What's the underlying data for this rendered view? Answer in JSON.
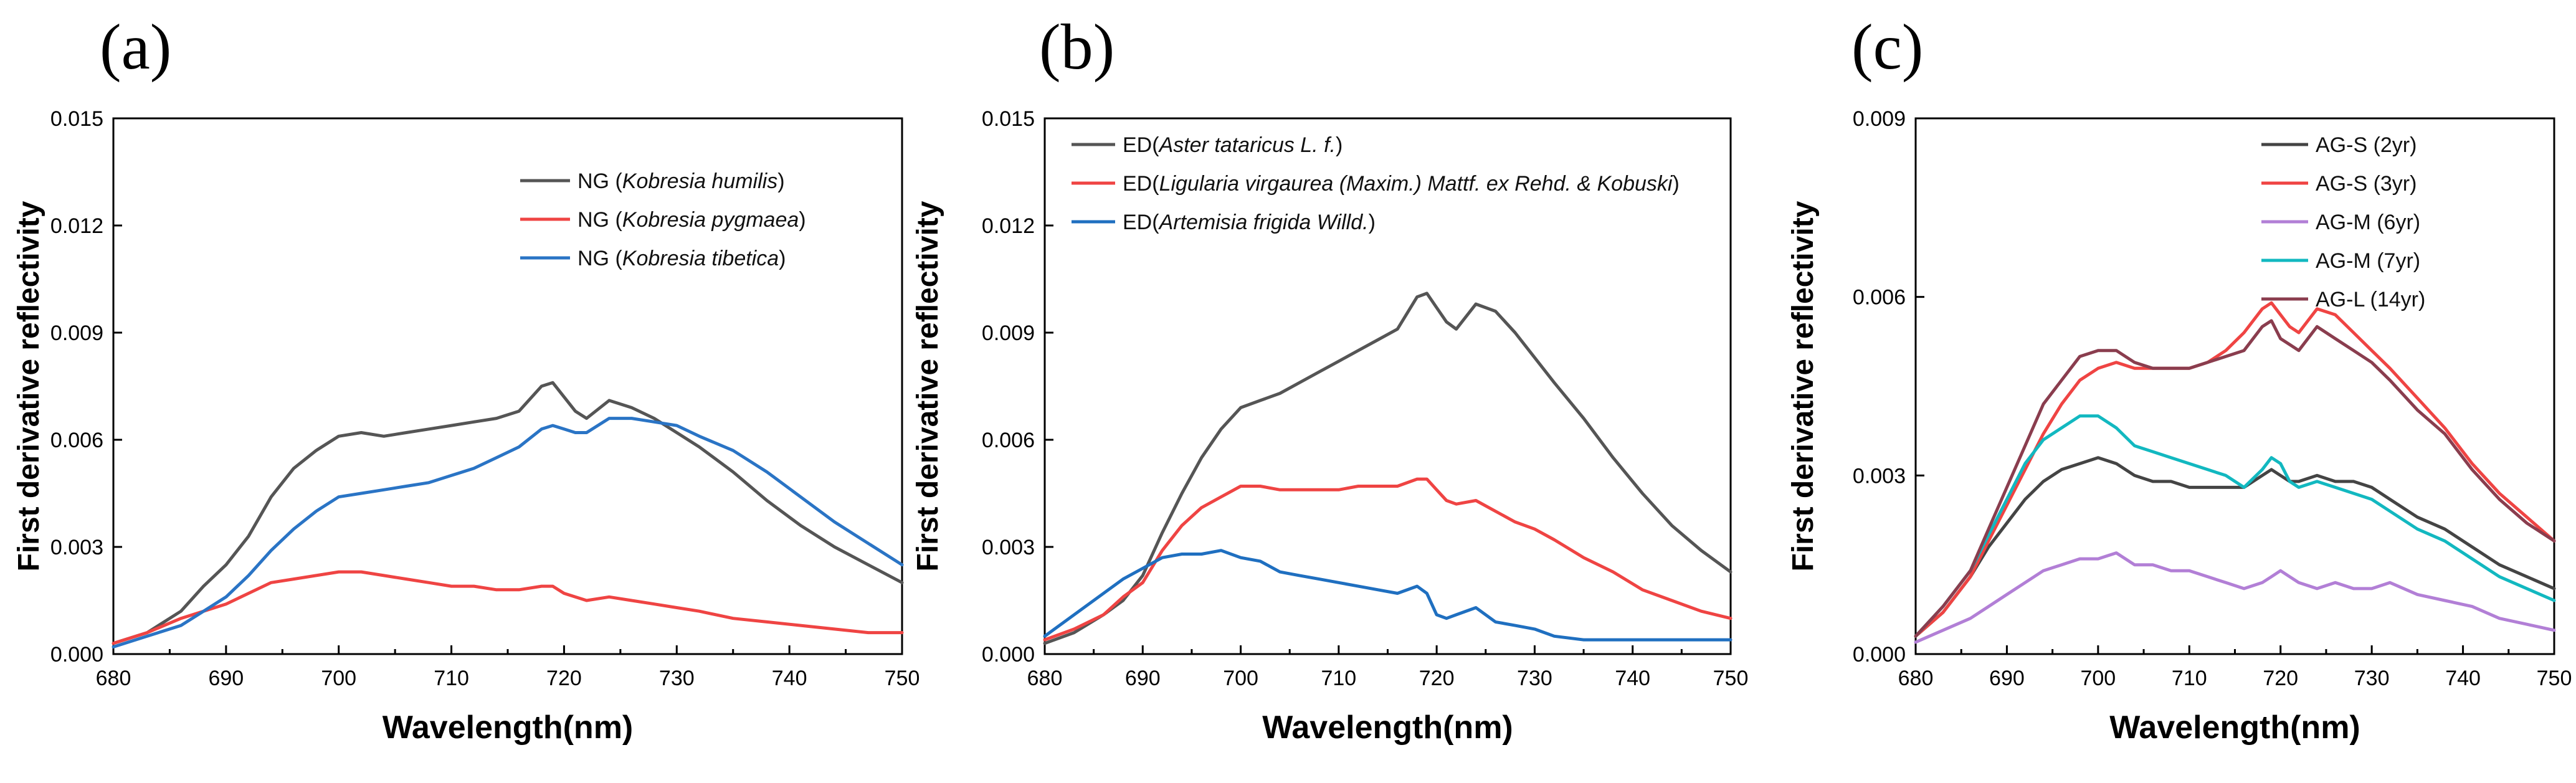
{
  "chart_data": [
    {
      "type": "line",
      "panel_label": "(a)",
      "xlabel": "Wavelength(nm)",
      "ylabel": "First derivative reflectivity",
      "xlim": [
        680,
        750
      ],
      "ylim": [
        0,
        0.015
      ],
      "xticks": [
        "680",
        "690",
        "700",
        "710",
        "720",
        "730",
        "740",
        "750"
      ],
      "yticks": [
        "0.000",
        "0.003",
        "0.006",
        "0.009",
        "0.012",
        "0.015"
      ],
      "legend_position": "top-right",
      "x": [
        680,
        683,
        686,
        688,
        690,
        692,
        694,
        696,
        698,
        700,
        702,
        704,
        706,
        708,
        710,
        712,
        714,
        716,
        718,
        719,
        720,
        721,
        722,
        724,
        726,
        728,
        730,
        732,
        735,
        738,
        741,
        744,
        747,
        750
      ],
      "series": [
        {
          "name_prefix": "NG (",
          "name_italic": "Kobresia humilis",
          "name_suffix": ")",
          "color": "#555555",
          "values": [
            0.0003,
            0.0006,
            0.0012,
            0.0019,
            0.0025,
            0.0033,
            0.0044,
            0.0052,
            0.0057,
            0.0061,
            0.0062,
            0.0061,
            0.0062,
            0.0063,
            0.0064,
            0.0065,
            0.0066,
            0.0068,
            0.0075,
            0.0076,
            0.0072,
            0.0068,
            0.0066,
            0.0071,
            0.0069,
            0.0066,
            0.0062,
            0.0058,
            0.0051,
            0.0043,
            0.0036,
            0.003,
            0.0025,
            0.002
          ]
        },
        {
          "name_prefix": "NG (",
          "name_italic": "Kobresia pygmaea",
          "name_suffix": ")",
          "color": "#ef4443",
          "values": [
            0.0003,
            0.0006,
            0.001,
            0.0012,
            0.0014,
            0.0017,
            0.002,
            0.0021,
            0.0022,
            0.0023,
            0.0023,
            0.0022,
            0.0021,
            0.002,
            0.0019,
            0.0019,
            0.0018,
            0.0018,
            0.0019,
            0.0019,
            0.0017,
            0.0016,
            0.0015,
            0.0016,
            0.0015,
            0.0014,
            0.0013,
            0.0012,
            0.001,
            0.0009,
            0.0008,
            0.0007,
            0.0006,
            0.0006
          ]
        },
        {
          "name_prefix": "NG (",
          "name_italic": "Kobresia tibetica",
          "name_suffix": ")",
          "color": "#2a74c5",
          "values": [
            0.0002,
            0.0005,
            0.0008,
            0.0012,
            0.0016,
            0.0022,
            0.0029,
            0.0035,
            0.004,
            0.0044,
            0.0045,
            0.0046,
            0.0047,
            0.0048,
            0.005,
            0.0052,
            0.0055,
            0.0058,
            0.0063,
            0.0064,
            0.0063,
            0.0062,
            0.0062,
            0.0066,
            0.0066,
            0.0065,
            0.0064,
            0.0061,
            0.0057,
            0.0051,
            0.0044,
            0.0037,
            0.0031,
            0.0025
          ]
        }
      ]
    },
    {
      "type": "line",
      "panel_label": "(b)",
      "xlabel": "Wavelength(nm)",
      "ylabel": "First derivative reflectivity",
      "xlim": [
        680,
        750
      ],
      "ylim": [
        0,
        0.015
      ],
      "xticks": [
        "680",
        "690",
        "700",
        "710",
        "720",
        "730",
        "740",
        "750"
      ],
      "yticks": [
        "0.000",
        "0.003",
        "0.006",
        "0.009",
        "0.012",
        "0.015"
      ],
      "legend_position": "top-left",
      "x": [
        680,
        683,
        686,
        688,
        690,
        692,
        694,
        696,
        698,
        700,
        702,
        704,
        706,
        708,
        710,
        712,
        714,
        716,
        718,
        719,
        720,
        721,
        722,
        724,
        726,
        728,
        730,
        732,
        735,
        738,
        741,
        744,
        747,
        750
      ],
      "series": [
        {
          "name_prefix": "ED(",
          "name_italic": "Aster tataricus L. f.",
          "name_suffix": ")",
          "color": "#555555",
          "values": [
            0.0003,
            0.0006,
            0.0011,
            0.0015,
            0.0022,
            0.0034,
            0.0045,
            0.0055,
            0.0063,
            0.0069,
            0.0071,
            0.0073,
            0.0076,
            0.0079,
            0.0082,
            0.0085,
            0.0088,
            0.0091,
            0.01,
            0.0101,
            0.0097,
            0.0093,
            0.0091,
            0.0098,
            0.0096,
            0.009,
            0.0083,
            0.0076,
            0.0066,
            0.0055,
            0.0045,
            0.0036,
            0.0029,
            0.0023
          ]
        },
        {
          "name_prefix": "ED(",
          "name_italic": "Ligularia virgaurea (Maxim.) Mattf. ex Rehd. & Kobuski",
          "name_suffix": ")",
          "color": "#ef4443",
          "values": [
            0.0004,
            0.0007,
            0.0011,
            0.0016,
            0.002,
            0.0029,
            0.0036,
            0.0041,
            0.0044,
            0.0047,
            0.0047,
            0.0046,
            0.0046,
            0.0046,
            0.0046,
            0.0047,
            0.0047,
            0.0047,
            0.0049,
            0.0049,
            0.0046,
            0.0043,
            0.0042,
            0.0043,
            0.004,
            0.0037,
            0.0035,
            0.0032,
            0.0027,
            0.0023,
            0.0018,
            0.0015,
            0.0012,
            0.001
          ]
        },
        {
          "name_prefix": "ED(",
          "name_italic": "Artemisia frigida Willd.",
          "name_suffix": ")",
          "color": "#1f6fc0",
          "values": [
            0.0005,
            0.0011,
            0.0017,
            0.0021,
            0.0024,
            0.0027,
            0.0028,
            0.0028,
            0.0029,
            0.0027,
            0.0026,
            0.0023,
            0.0022,
            0.0021,
            0.002,
            0.0019,
            0.0018,
            0.0017,
            0.0019,
            0.0017,
            0.0011,
            0.001,
            0.0011,
            0.0013,
            0.0009,
            0.0008,
            0.0007,
            0.0005,
            0.0004,
            0.0004,
            0.0004,
            0.0004,
            0.0004,
            0.0004
          ]
        }
      ]
    },
    {
      "type": "line",
      "panel_label": "(c)",
      "xlabel": "Wavelength(nm)",
      "ylabel": "First derivative reflectivity",
      "xlim": [
        680,
        750
      ],
      "ylim": [
        0,
        0.009
      ],
      "xticks": [
        "680",
        "690",
        "700",
        "710",
        "720",
        "730",
        "740",
        "750"
      ],
      "yticks": [
        "0.000",
        "0.003",
        "0.006",
        "0.009"
      ],
      "legend_position": "top-right",
      "x": [
        680,
        683,
        686,
        688,
        690,
        692,
        694,
        696,
        698,
        700,
        702,
        704,
        706,
        708,
        710,
        712,
        714,
        716,
        718,
        719,
        720,
        721,
        722,
        724,
        726,
        728,
        730,
        732,
        735,
        738,
        741,
        744,
        747,
        750
      ],
      "series": [
        {
          "name": "AG-S (2yr)",
          "color": "#444444",
          "values": [
            0.0003,
            0.0007,
            0.0013,
            0.0018,
            0.0022,
            0.0026,
            0.0029,
            0.0031,
            0.0032,
            0.0033,
            0.0032,
            0.003,
            0.0029,
            0.0029,
            0.0028,
            0.0028,
            0.0028,
            0.0028,
            0.003,
            0.0031,
            0.003,
            0.0029,
            0.0029,
            0.003,
            0.0029,
            0.0029,
            0.0028,
            0.0026,
            0.0023,
            0.0021,
            0.0018,
            0.0015,
            0.0013,
            0.0011
          ]
        },
        {
          "name": "AG-S (3yr)",
          "color": "#ef4443",
          "values": [
            0.0003,
            0.0007,
            0.0013,
            0.0019,
            0.0025,
            0.0031,
            0.0037,
            0.0042,
            0.0046,
            0.0048,
            0.0049,
            0.0048,
            0.0048,
            0.0048,
            0.0048,
            0.0049,
            0.0051,
            0.0054,
            0.0058,
            0.0059,
            0.0057,
            0.0055,
            0.0054,
            0.0058,
            0.0057,
            0.0054,
            0.0051,
            0.0048,
            0.0043,
            0.0038,
            0.0032,
            0.0027,
            0.0023,
            0.0019
          ]
        },
        {
          "name": "AG-M (6yr)",
          "color": "#b27fd6",
          "values": [
            0.0002,
            0.0004,
            0.0006,
            0.0008,
            0.001,
            0.0012,
            0.0014,
            0.0015,
            0.0016,
            0.0016,
            0.0017,
            0.0015,
            0.0015,
            0.0014,
            0.0014,
            0.0013,
            0.0012,
            0.0011,
            0.0012,
            0.0013,
            0.0014,
            0.0013,
            0.0012,
            0.0011,
            0.0012,
            0.0011,
            0.0011,
            0.0012,
            0.001,
            0.0009,
            0.0008,
            0.0006,
            0.0005,
            0.0004
          ]
        },
        {
          "name": "AG-M (7yr)",
          "color": "#12b8c0",
          "values": [
            0.0003,
            0.0008,
            0.0014,
            0.002,
            0.0026,
            0.0032,
            0.0036,
            0.0038,
            0.004,
            0.004,
            0.0038,
            0.0035,
            0.0034,
            0.0033,
            0.0032,
            0.0031,
            0.003,
            0.0028,
            0.0031,
            0.0033,
            0.0032,
            0.0029,
            0.0028,
            0.0029,
            0.0028,
            0.0027,
            0.0026,
            0.0024,
            0.0021,
            0.0019,
            0.0016,
            0.0013,
            0.0011,
            0.0009
          ]
        },
        {
          "name": "AG-L (14yr)",
          "color": "#8a3d4e",
          "values": [
            0.0003,
            0.0008,
            0.0014,
            0.0021,
            0.0028,
            0.0035,
            0.0042,
            0.0046,
            0.005,
            0.0051,
            0.0051,
            0.0049,
            0.0048,
            0.0048,
            0.0048,
            0.0049,
            0.005,
            0.0051,
            0.0055,
            0.0056,
            0.0053,
            0.0052,
            0.0051,
            0.0055,
            0.0053,
            0.0051,
            0.0049,
            0.0046,
            0.0041,
            0.0037,
            0.0031,
            0.0026,
            0.0022,
            0.0019
          ]
        }
      ]
    }
  ]
}
